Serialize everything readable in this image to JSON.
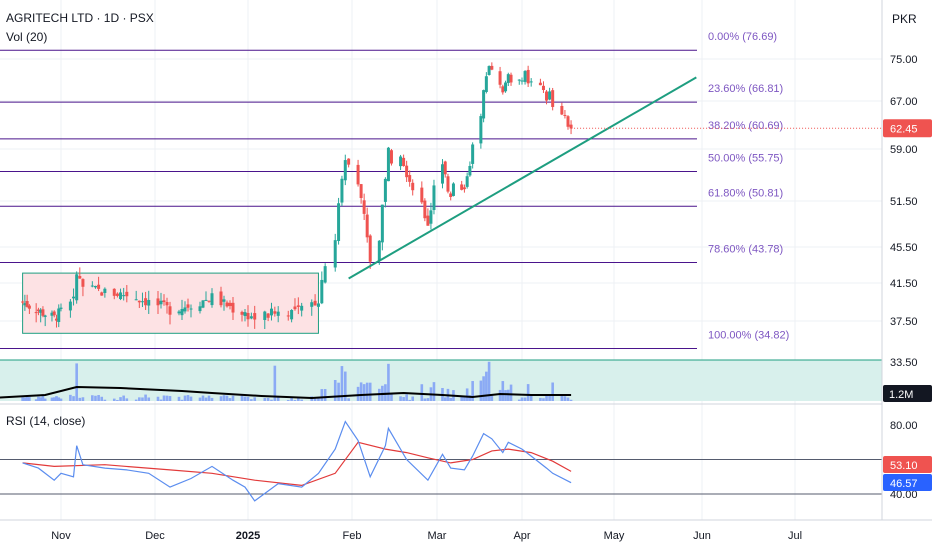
{
  "header": {
    "symbol_line": "AGRITECH LTD · 1D · PSX",
    "volume_line": "Vol (20)",
    "currency": "PKR"
  },
  "chart_data": {
    "type": "candlestick",
    "symbol": "AGRITECH LTD",
    "interval": "1D",
    "exchange": "PSX",
    "currency": "PKR",
    "last_price": "62.45",
    "price_axis_ticks": [
      "75.00",
      "67.00",
      "59.00",
      "51.50",
      "45.50",
      "41.50",
      "37.50",
      "33.50"
    ],
    "x_axis_labels": [
      "Nov",
      "Dec",
      "2025",
      "Feb",
      "Mar",
      "Apr",
      "May",
      "Jun",
      "Jul"
    ],
    "fibonacci_levels": [
      {
        "label": "0.00% (76.69)",
        "value": 76.69
      },
      {
        "label": "23.60% (66.81)",
        "value": 66.81
      },
      {
        "label": "38.20% (60.69)",
        "value": 60.69
      },
      {
        "label": "50.00% (55.75)",
        "value": 55.75
      },
      {
        "label": "61.80% (50.81)",
        "value": 50.81
      },
      {
        "label": "78.60% (43.78)",
        "value": 43.78
      },
      {
        "label": "100.00% (34.82)",
        "value": 34.82
      }
    ],
    "consolidation_range": {
      "from": "2024-10-15",
      "to": "2025-01-22",
      "high": 42.6,
      "low": 36.3
    },
    "trendline": {
      "start": {
        "date": "2025-01-31",
        "price": 42.0
      },
      "end": {
        "date": "2025-05-30",
        "price": 71.5
      }
    },
    "price_series": [
      [
        "2024-10-15",
        39.5
      ],
      [
        "2024-10-22",
        38.6
      ],
      [
        "2024-10-29",
        37.8
      ],
      [
        "2024-11-01",
        38.5
      ],
      [
        "2024-11-05",
        39.5
      ],
      [
        "2024-11-06",
        42.4
      ],
      [
        "2024-11-08",
        41.0
      ],
      [
        "2024-11-15",
        40.5
      ],
      [
        "2024-11-22",
        40.3
      ],
      [
        "2024-11-29",
        39.5
      ],
      [
        "2024-12-06",
        38.7
      ],
      [
        "2024-12-13",
        39.2
      ],
      [
        "2024-12-20",
        40.0
      ],
      [
        "2024-12-27",
        38.8
      ],
      [
        "2024-12-31",
        38.3
      ],
      [
        "2025-01-03",
        37.8
      ],
      [
        "2025-01-10",
        38.4
      ],
      [
        "2025-01-17",
        38.6
      ],
      [
        "2025-01-22",
        39.8
      ],
      [
        "2025-01-24",
        43.8
      ],
      [
        "2025-01-27",
        46.5
      ],
      [
        "2025-01-28",
        51.0
      ],
      [
        "2025-01-29",
        55.0
      ],
      [
        "2025-01-30",
        57.5
      ],
      [
        "2025-01-31",
        56.8
      ],
      [
        "2025-02-03",
        54.5
      ],
      [
        "2025-02-04",
        52.0
      ],
      [
        "2025-02-05",
        49.5
      ],
      [
        "2025-02-06",
        47.0
      ],
      [
        "2025-02-07",
        44.0
      ],
      [
        "2025-02-10",
        46.5
      ],
      [
        "2025-02-11",
        51.0
      ],
      [
        "2025-02-12",
        55.0
      ],
      [
        "2025-02-13",
        58.8
      ],
      [
        "2025-02-14",
        57.5
      ],
      [
        "2025-02-17",
        58.5
      ],
      [
        "2025-02-18",
        57.0
      ],
      [
        "2025-02-19",
        55.5
      ],
      [
        "2025-02-21",
        53.5
      ],
      [
        "2025-02-24",
        51.0
      ],
      [
        "2025-02-25",
        49.5
      ],
      [
        "2025-02-26",
        48.5
      ],
      [
        "2025-02-27",
        50.5
      ],
      [
        "2025-02-28",
        53.5
      ],
      [
        "2025-03-03",
        56.5
      ],
      [
        "2025-03-04",
        55.0
      ],
      [
        "2025-03-05",
        53.0
      ],
      [
        "2025-03-06",
        52.5
      ],
      [
        "2025-03-07",
        54.5
      ],
      [
        "2025-03-10",
        53.0
      ],
      [
        "2025-03-11",
        52.8
      ],
      [
        "2025-03-12",
        55.5
      ],
      [
        "2025-03-13",
        57.0
      ],
      [
        "2025-03-14",
        59.5
      ],
      [
        "2025-03-17",
        64.0
      ],
      [
        "2025-03-18",
        68.5
      ],
      [
        "2025-03-19",
        72.0
      ],
      [
        "2025-03-20",
        74.0
      ],
      [
        "2025-03-21",
        73.0
      ],
      [
        "2025-03-24",
        70.5
      ],
      [
        "2025-03-25",
        68.5
      ],
      [
        "2025-03-26",
        70.5
      ],
      [
        "2025-03-27",
        72.5
      ],
      [
        "2025-03-28",
        70.0
      ],
      [
        "2025-03-31",
        71.5
      ],
      [
        "2025-04-01",
        71.0
      ],
      [
        "2025-04-02",
        72.2
      ],
      [
        "2025-04-03",
        70.0
      ],
      [
        "2025-04-04",
        71.0
      ],
      [
        "2025-04-07",
        69.5
      ],
      [
        "2025-04-08",
        69.0
      ],
      [
        "2025-04-09",
        67.5
      ],
      [
        "2025-04-10",
        68.5
      ],
      [
        "2025-04-11",
        66.0
      ],
      [
        "2025-04-14",
        65.0
      ],
      [
        "2025-04-15",
        64.0
      ],
      [
        "2025-04-16",
        63.0
      ],
      [
        "2025-04-17",
        62.45
      ]
    ],
    "volume": {
      "last_value": "1.2M",
      "moving_average_length": 20,
      "spike_dates": [
        "2024-11-06",
        "2025-01-09",
        "2025-01-29",
        "2025-01-30",
        "2025-02-13",
        "2025-03-19",
        "2025-03-20"
      ]
    },
    "rsi": {
      "title": "RSI (14, close)",
      "length": 14,
      "source": "close",
      "ticks": [
        "80.00",
        "40.00"
      ],
      "upper_band": 60,
      "lower_band": 40,
      "rsi_last": "46.57",
      "rsi_ma_last": "53.10",
      "series": [
        [
          "2024-10-15",
          58
        ],
        [
          "2024-10-22",
          55
        ],
        [
          "2024-10-29",
          48
        ],
        [
          "2024-11-01",
          52
        ],
        [
          "2024-11-05",
          50
        ],
        [
          "2024-11-06",
          68
        ],
        [
          "2024-11-08",
          57
        ],
        [
          "2024-11-15",
          55
        ],
        [
          "2024-11-22",
          54
        ],
        [
          "2024-11-29",
          52
        ],
        [
          "2024-12-06",
          44
        ],
        [
          "2024-12-13",
          49
        ],
        [
          "2024-12-20",
          56
        ],
        [
          "2024-12-27",
          48
        ],
        [
          "2024-12-31",
          44
        ],
        [
          "2025-01-03",
          36
        ],
        [
          "2025-01-10",
          46
        ],
        [
          "2025-01-17",
          44
        ],
        [
          "2025-01-22",
          52
        ],
        [
          "2025-01-27",
          66
        ],
        [
          "2025-01-30",
          82
        ],
        [
          "2025-02-03",
          71
        ],
        [
          "2025-02-07",
          50
        ],
        [
          "2025-02-12",
          68
        ],
        [
          "2025-02-13",
          78
        ],
        [
          "2025-02-19",
          60
        ],
        [
          "2025-02-26",
          48
        ],
        [
          "2025-03-03",
          63
        ],
        [
          "2025-03-06",
          55
        ],
        [
          "2025-03-11",
          54
        ],
        [
          "2025-03-14",
          62
        ],
        [
          "2025-03-18",
          75
        ],
        [
          "2025-03-21",
          72
        ],
        [
          "2025-03-25",
          64
        ],
        [
          "2025-03-27",
          70
        ],
        [
          "2025-04-01",
          66
        ],
        [
          "2025-04-04",
          62
        ],
        [
          "2025-04-09",
          55
        ],
        [
          "2025-04-11",
          52
        ],
        [
          "2025-04-17",
          46.57
        ]
      ],
      "ma_series": [
        [
          "2024-10-15",
          58
        ],
        [
          "2024-10-29",
          56
        ],
        [
          "2024-11-15",
          57
        ],
        [
          "2024-12-06",
          54
        ],
        [
          "2024-12-20",
          52
        ],
        [
          "2025-01-03",
          48
        ],
        [
          "2025-01-17",
          45
        ],
        [
          "2025-01-27",
          52
        ],
        [
          "2025-02-03",
          70
        ],
        [
          "2025-02-12",
          66
        ],
        [
          "2025-02-19",
          64
        ],
        [
          "2025-02-26",
          61
        ],
        [
          "2025-03-06",
          58
        ],
        [
          "2025-03-14",
          60
        ],
        [
          "2025-03-21",
          65
        ],
        [
          "2025-03-27",
          66
        ],
        [
          "2025-04-04",
          64
        ],
        [
          "2025-04-11",
          59
        ],
        [
          "2025-04-17",
          53.1
        ]
      ]
    }
  },
  "colors": {
    "up": "#26a69a",
    "down": "#ef5350",
    "fib_line": "#4a148c",
    "fib_text": "#7e57c2",
    "trendline": "#1e9e80",
    "range_fill": "#fde2e4",
    "range_border": "#1e9e80",
    "volume_bar": "#7e9df7",
    "volume_ma": "#000000",
    "volume_zone": "#d8f0ec",
    "rsi_line": "#5b8def",
    "rsi_ma": "#e23a3a",
    "last_price_bg": "#ef5350",
    "rsi_badge": "#2962ff",
    "rsi_ma_badge": "#ef5350",
    "grid": "#eef0f4",
    "axis_text": "#131722"
  }
}
